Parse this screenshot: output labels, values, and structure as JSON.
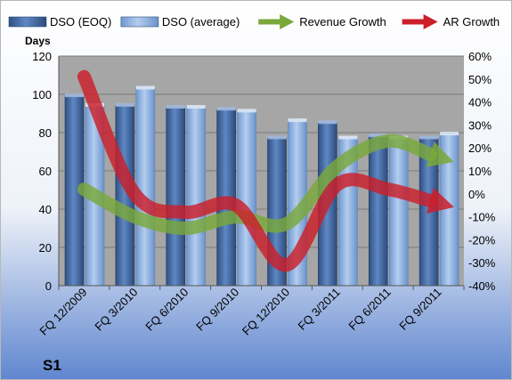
{
  "chart_data": {
    "type": "bar",
    "title": "",
    "ylabel": "Days",
    "y2label": "",
    "categories": [
      "FQ 12/2009",
      "FQ 3/2010",
      "FQ 6/2010",
      "FQ 9/2010",
      "FQ 12/2010",
      "FQ 3/2011",
      "FQ 6/2011",
      "FQ 9/2011"
    ],
    "series": [
      {
        "name": "DSO (EOQ)",
        "kind": "bar",
        "axis": "left",
        "color": "#4a73b0",
        "values": [
          99,
          94,
          93,
          92,
          77,
          85,
          78,
          77
        ]
      },
      {
        "name": "DSO (average)",
        "kind": "bar",
        "axis": "left",
        "color": "#8fb4e3",
        "values": [
          94,
          103,
          93,
          91,
          86,
          77,
          77,
          79
        ]
      },
      {
        "name": "Revenue Growth",
        "kind": "line-arrow",
        "axis": "right",
        "color": "#7aa83a",
        "values": [
          0.02,
          -0.1,
          -0.15,
          -0.1,
          -0.13,
          0.12,
          0.23,
          0.16
        ]
      },
      {
        "name": "AR Growth",
        "kind": "line-arrow",
        "axis": "right",
        "color": "#cc1f2a",
        "values": [
          0.51,
          0.0,
          -0.08,
          -0.05,
          -0.31,
          0.04,
          0.02,
          -0.04
        ]
      }
    ],
    "y_ticks": [
      "0",
      "20",
      "40",
      "60",
      "80",
      "100",
      "120"
    ],
    "y2_ticks": [
      "-40%",
      "-30%",
      "-20%",
      "-10%",
      "0%",
      "10%",
      "20%",
      "30%",
      "40%",
      "50%",
      "60%"
    ],
    "ylim": [
      0,
      120
    ],
    "y2lim": [
      -0.4,
      0.6
    ],
    "grid": "horizontal",
    "legend": "top",
    "brand_label": "S1"
  }
}
